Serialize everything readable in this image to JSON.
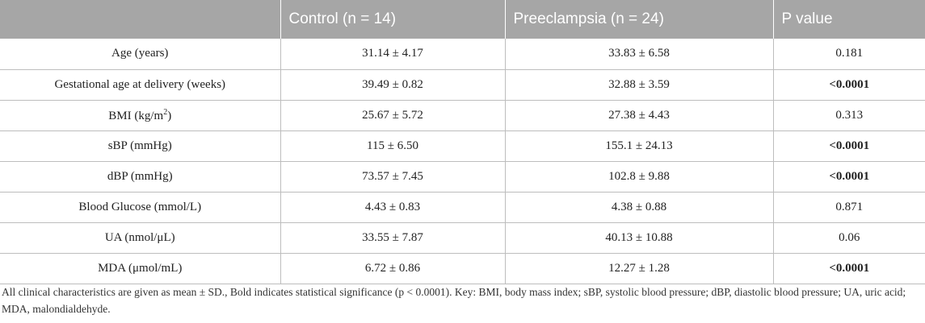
{
  "table": {
    "headers": [
      "",
      "Control (n = 14)",
      "Preeclampsia (n = 24)",
      "P value"
    ],
    "rows": [
      {
        "label": "Age (years)",
        "control": "31.14 ± 4.17",
        "preeclampsia": "33.83 ± 6.58",
        "p_value": "0.181",
        "significant": false
      },
      {
        "label": "Gestational age at delivery (weeks)",
        "control": "39.49 ± 0.82",
        "preeclampsia": "32.88 ± 3.59",
        "p_value": "<0.0001",
        "significant": true
      },
      {
        "label_main": "BMI (kg/m",
        "label_sup": "2",
        "label_end": ")",
        "control": "25.67 ± 5.72",
        "preeclampsia": "27.38 ± 4.43",
        "p_value": "0.313",
        "significant": false
      },
      {
        "label": "sBP (mmHg)",
        "control": "115 ± 6.50",
        "preeclampsia": "155.1 ± 24.13",
        "p_value": "<0.0001",
        "significant": true
      },
      {
        "label": "dBP (mmHg)",
        "control": "73.57 ± 7.45",
        "preeclampsia": "102.8 ± 9.88",
        "p_value": "<0.0001",
        "significant": true
      },
      {
        "label": "Blood Glucose (mmol/L)",
        "control": "4.43 ± 0.83",
        "preeclampsia": "4.38 ± 0.88",
        "p_value": "0.871",
        "significant": false
      },
      {
        "label": "UA (nmol/μL)",
        "control": "33.55 ± 7.87",
        "preeclampsia": "40.13 ± 10.88",
        "p_value": "0.06",
        "significant": false
      },
      {
        "label": "MDA (μmol/mL)",
        "control": "6.72 ± 0.86",
        "preeclampsia": "12.27 ± 1.28",
        "p_value": "<0.0001",
        "significant": true
      }
    ]
  },
  "footnote": "All clinical characteristics are given as mean ± SD., Bold indicates statistical significance (p < 0.0001). Key: BMI, body mass index; sBP, systolic blood pressure; dBP, diastolic blood pressure; UA, uric acid; MDA, malondialdehyde."
}
